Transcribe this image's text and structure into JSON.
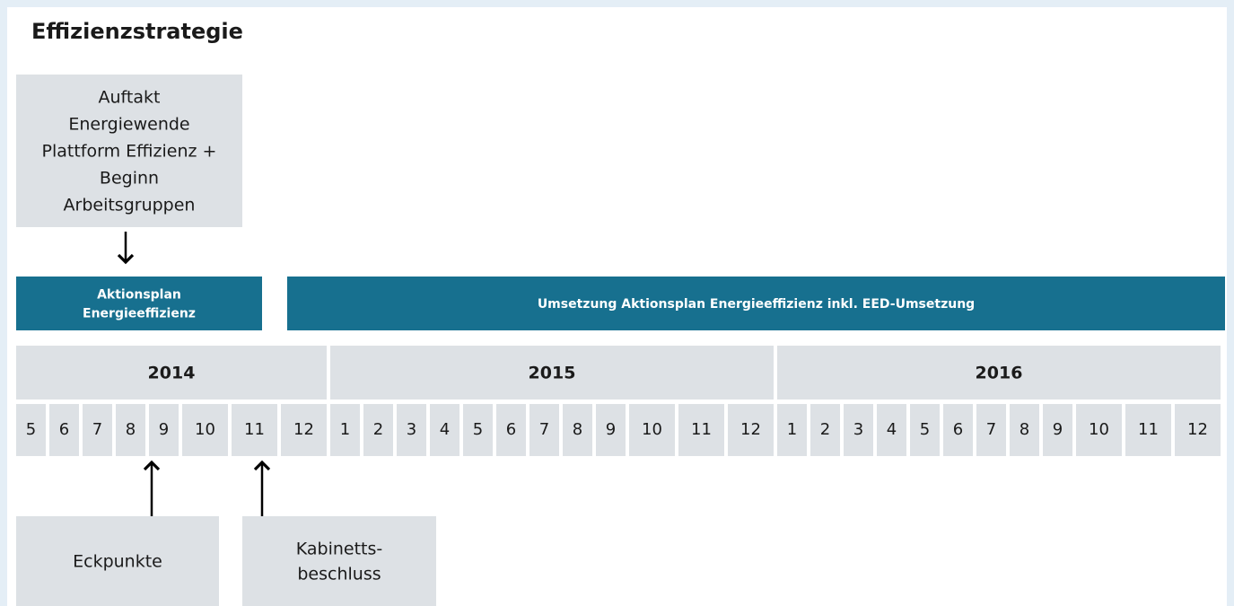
{
  "title": "Effizienzstrategie",
  "top_box": {
    "lines": [
      "Auftakt",
      "Energiewende",
      "Plattform Effizienz +",
      "Beginn",
      "Arbeitsgruppen"
    ]
  },
  "bars": [
    {
      "lines": [
        "Aktionsplan",
        "Energieeffizienz"
      ]
    },
    {
      "lines": [
        "Umsetzung Aktionsplan Energieeffizienz inkl. EED-Umsetzung"
      ]
    }
  ],
  "years": [
    {
      "year": 2014,
      "months": [
        5,
        6,
        7,
        8,
        9,
        10,
        11,
        12
      ]
    },
    {
      "year": 2015,
      "months": [
        1,
        2,
        3,
        4,
        5,
        6,
        7,
        8,
        9,
        10,
        11,
        12
      ]
    },
    {
      "year": 2016,
      "months": [
        1,
        2,
        3,
        4,
        5,
        6,
        7,
        8,
        9,
        10,
        11,
        12
      ]
    }
  ],
  "bottom_boxes": [
    {
      "lines": [
        "Eckpunkte"
      ]
    },
    {
      "lines": [
        "Kabinetts-",
        "beschluss"
      ]
    }
  ]
}
